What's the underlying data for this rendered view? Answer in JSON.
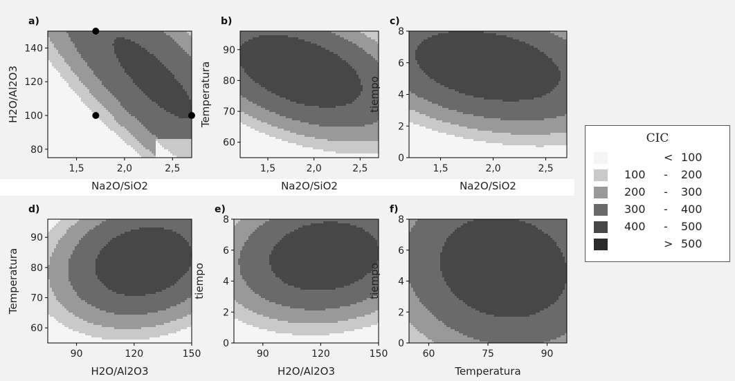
{
  "legend": {
    "title": "CIC",
    "levels": [
      {
        "lo": "",
        "op": "<",
        "hi": "100",
        "color": "#f5f5f5"
      },
      {
        "lo": "100",
        "op": "-",
        "hi": "200",
        "color": "#c9c9c9"
      },
      {
        "lo": "200",
        "op": "-",
        "hi": "300",
        "color": "#999999"
      },
      {
        "lo": "300",
        "op": "-",
        "hi": "400",
        "color": "#6a6a6a"
      },
      {
        "lo": "400",
        "op": "-",
        "hi": "500",
        "color": "#474747"
      },
      {
        "lo": "",
        "op": ">",
        "hi": "500",
        "color": "#2b2b2b"
      }
    ]
  },
  "chart_data": [
    {
      "type": "heatmap",
      "panel": "a)",
      "title": "",
      "xlabel": "Na2O/SiO2",
      "ylabel": "H2O/Al2O3",
      "xlim": [
        1.2,
        2.7
      ],
      "ylim": [
        75,
        150
      ],
      "xticks": [
        1.5,
        2.0,
        2.5
      ],
      "xtick_labels": [
        "1,5",
        "2,0",
        "2,5"
      ],
      "yticks": [
        80,
        100,
        120,
        140
      ],
      "ytick_labels": [
        "80",
        "100",
        "120",
        "140"
      ],
      "points": [
        {
          "x": 1.7,
          "y": 150
        },
        {
          "x": 1.7,
          "y": 100
        },
        {
          "x": 2.7,
          "y": 100
        }
      ],
      "surface": {
        "kind": "saddle",
        "center": [
          2.3,
          122
        ],
        "base": 350,
        "hxx": -160,
        "hyy": -90,
        "hxy": 140,
        "rot": -40
      }
    },
    {
      "type": "heatmap",
      "panel": "b)",
      "title": "",
      "xlabel": "Na2O/SiO2",
      "ylabel": "Temperatura",
      "xlim": [
        1.2,
        2.7
      ],
      "ylim": [
        55,
        96
      ],
      "xticks": [
        1.5,
        2.0,
        2.5
      ],
      "xtick_labels": [
        "1,5",
        "2,0",
        "2,5"
      ],
      "yticks": [
        60,
        70,
        80,
        90
      ],
      "ytick_labels": [
        "60",
        "70",
        "80",
        "90"
      ],
      "surface": {
        "kind": "ellipse",
        "center": [
          1.85,
          83
        ],
        "base": 470,
        "a": 1.0,
        "b": 14,
        "rot": -22,
        "k": 140
      }
    },
    {
      "type": "heatmap",
      "panel": "c)",
      "title": "",
      "xlabel": "Na2O/SiO2",
      "ylabel": "tiempo",
      "xlim": [
        1.2,
        2.7
      ],
      "ylim": [
        0,
        8
      ],
      "xticks": [
        1.5,
        2.0,
        2.5
      ],
      "xtick_labels": [
        "1,5",
        "2,0",
        "2,5"
      ],
      "yticks": [
        0,
        2,
        4,
        6,
        8
      ],
      "ytick_labels": [
        "0",
        "2",
        "4",
        "6",
        "8"
      ],
      "surface": {
        "kind": "ellipse",
        "center": [
          1.95,
          5.8
        ],
        "base": 470,
        "a": 1.1,
        "b": 3.2,
        "rot": -15,
        "k": 170
      }
    },
    {
      "type": "heatmap",
      "panel": "d)",
      "title": "",
      "xlabel": "H2O/Al2O3",
      "ylabel": "Temperatura",
      "xlim": [
        75,
        150
      ],
      "ylim": [
        55,
        96
      ],
      "xticks": [
        90,
        120,
        150
      ],
      "xtick_labels": [
        "90",
        "120",
        "150"
      ],
      "yticks": [
        60,
        70,
        80,
        90
      ],
      "ytick_labels": [
        "60",
        "70",
        "80",
        "90"
      ],
      "surface": {
        "kind": "ellipse",
        "center": [
          125,
          82
        ],
        "base": 470,
        "a": 38,
        "b": 16,
        "rot": 20,
        "k": 150
      }
    },
    {
      "type": "heatmap",
      "panel": "e)",
      "title": "",
      "xlabel": "H2O/Al2O3",
      "ylabel": "tiempo",
      "xlim": [
        75,
        150
      ],
      "ylim": [
        0,
        8
      ],
      "xticks": [
        90,
        120,
        150
      ],
      "xtick_labels": [
        "90",
        "120",
        "150"
      ],
      "yticks": [
        0,
        2,
        4,
        6,
        8
      ],
      "ytick_labels": [
        "0",
        "2",
        "4",
        "6",
        "8"
      ],
      "surface": {
        "kind": "ellipse",
        "center": [
          122,
          5.6
        ],
        "base": 470,
        "a": 42,
        "b": 3.2,
        "rot": 10,
        "k": 150
      }
    },
    {
      "type": "heatmap",
      "panel": "f)",
      "title": "",
      "xlabel": "Temperatura",
      "ylabel": "tiempo",
      "xlim": [
        55,
        95
      ],
      "ylim": [
        0,
        8
      ],
      "xticks": [
        60,
        75,
        90
      ],
      "xtick_labels": [
        "60",
        "75",
        "90"
      ],
      "yticks": [
        0,
        2,
        4,
        6,
        8
      ],
      "ytick_labels": [
        "0",
        "2",
        "4",
        "6",
        "8"
      ],
      "surface": {
        "kind": "ellipse",
        "center": [
          79,
          4.9
        ],
        "base": 470,
        "a": 26,
        "b": 4.6,
        "rot": -48,
        "k": 160
      }
    }
  ]
}
